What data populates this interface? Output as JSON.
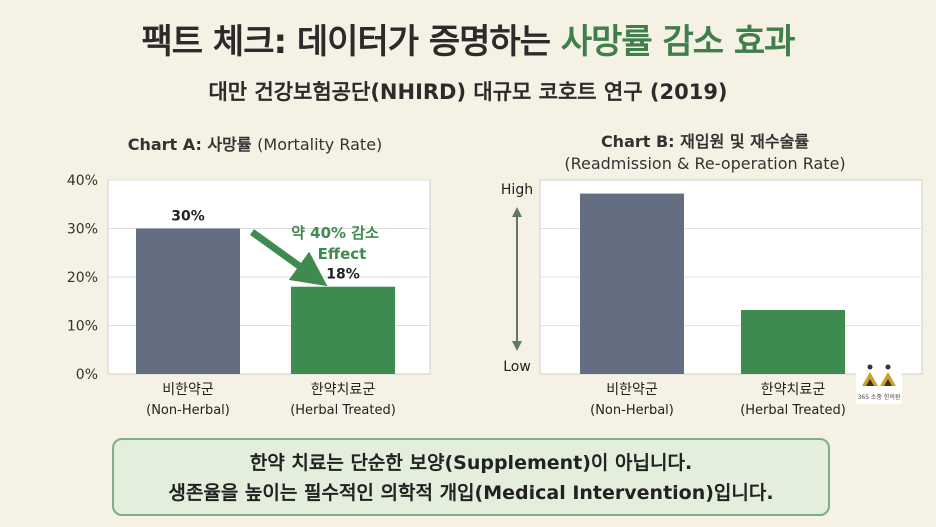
{
  "header": {
    "title_main": "팩트 체크: 데이터가 증명하는 ",
    "title_highlight": "사망률 감소 효과",
    "subtitle": "대만 건강보험공단(NHIRD) 대규모 코호트 연구 (2019)"
  },
  "colors": {
    "non_herbal": "#636f80",
    "herbal": "#3f8b4f",
    "highlight": "#3f7f4a"
  },
  "chart_data": [
    {
      "type": "bar",
      "title": "Chart A: ",
      "title_ko": "사망률 ",
      "title_en": "(Mortality Rate)",
      "categories": [
        "비한약군 (Non-Herbal)",
        "한약치료군 (Herbal Treated)"
      ],
      "category_ko": [
        "비한약군",
        "한약치료군"
      ],
      "category_en": [
        "(Non-Herbal)",
        "(Herbal Treated)"
      ],
      "values": [
        30,
        18
      ],
      "value_labels": [
        "30%",
        "18%"
      ],
      "yticks": [
        "0%",
        "10%",
        "20%",
        "30%",
        "40%"
      ],
      "ylim": [
        0,
        40
      ],
      "annotation": [
        "약 40% 감소",
        "Effect"
      ]
    },
    {
      "type": "bar",
      "title": "Chart B: 재입원 및 재수술률",
      "subtitle": "(Readmission & Re-operation Rate)",
      "categories": [
        "비한약군 (Non-Herbal)",
        "한약치료군 (Herbal Treated)"
      ],
      "category_ko": [
        "비한약군",
        "한약치료군"
      ],
      "category_en": [
        "(Non-Herbal)",
        "(Herbal Treated)"
      ],
      "values": [
        0.93,
        0.33
      ],
      "y_high_label": "High",
      "y_low_label": "Low"
    }
  ],
  "footer": {
    "line1": "한약 치료는 단순한 보양(Supplement)이 아닙니다.",
    "line2": "생존율을 높이는 필수적인 의학적 개입(Medical Intervention)입니다."
  },
  "logo": {
    "text": "365 소중 한의원"
  }
}
